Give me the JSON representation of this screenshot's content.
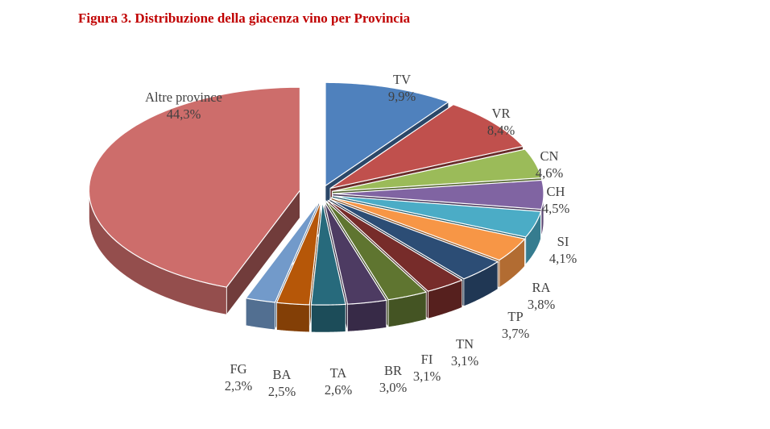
{
  "chart_data": {
    "type": "pie",
    "title": "Figura 3. Distribuzione della giacenza vino per Provincia",
    "exploded": true,
    "three_d": true,
    "slices": [
      {
        "label": "TV",
        "value": 9.9,
        "display": "9,9%",
        "color": "#4f81bd"
      },
      {
        "label": "VR",
        "value": 8.4,
        "display": "8,4%",
        "color": "#c0504d"
      },
      {
        "label": "CN",
        "value": 4.6,
        "display": "4,6%",
        "color": "#9bbb59"
      },
      {
        "label": "CH",
        "value": 4.5,
        "display": "4,5%",
        "color": "#8064a2"
      },
      {
        "label": "SI",
        "value": 4.1,
        "display": "4,1%",
        "color": "#4bacc6"
      },
      {
        "label": "RA",
        "value": 3.8,
        "display": "3,8%",
        "color": "#f79646"
      },
      {
        "label": "TP",
        "value": 3.7,
        "display": "3,7%",
        "color": "#2c4d75"
      },
      {
        "label": "TN",
        "value": 3.1,
        "display": "3,1%",
        "color": "#772c2a"
      },
      {
        "label": "FI",
        "value": 3.1,
        "display": "3,1%",
        "color": "#5f7530"
      },
      {
        "label": "BR",
        "value": 3.0,
        "display": "3,0%",
        "color": "#4d3b62"
      },
      {
        "label": "TA",
        "value": 2.6,
        "display": "2,6%",
        "color": "#276a7c"
      },
      {
        "label": "BA",
        "value": 2.5,
        "display": "2,5%",
        "color": "#b65708"
      },
      {
        "label": "FG",
        "value": 2.3,
        "display": "2,3%",
        "color": "#729aca"
      },
      {
        "label": "Altre province",
        "value": 44.3,
        "display": "44,3%",
        "color": "#cd6d6b"
      }
    ]
  }
}
